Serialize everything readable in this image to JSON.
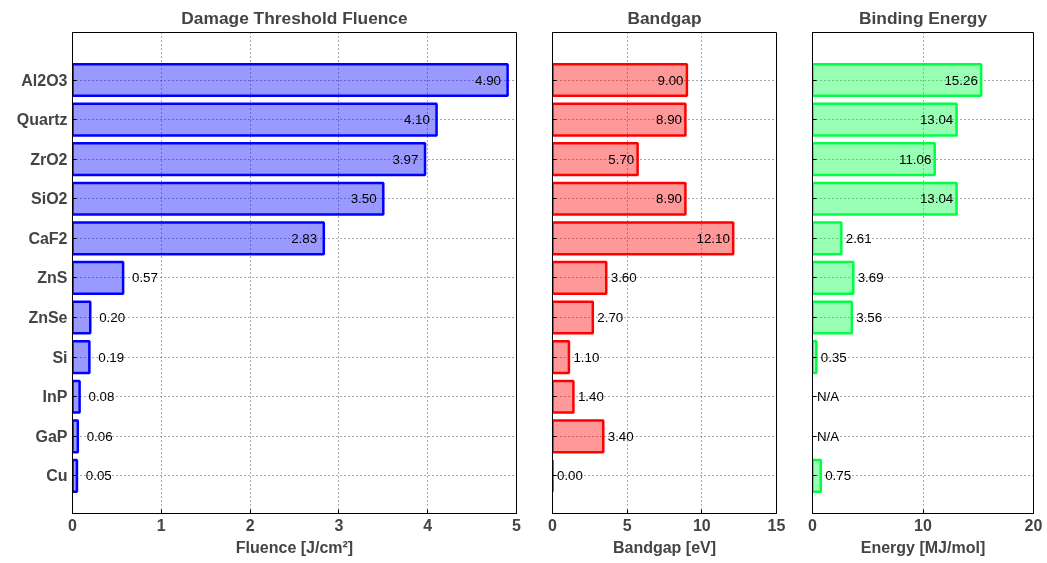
{
  "chart_data": [
    {
      "type": "bar",
      "orientation": "horizontal",
      "title": "Damage Threshold Fluence",
      "xlabel": "Fluence [J/cm²]",
      "categories": [
        "Al2O3",
        "Quartz",
        "ZrO2",
        "SiO2",
        "CaF2",
        "ZnS",
        "ZnSe",
        "Si",
        "InP",
        "GaP",
        "Cu"
      ],
      "series": [
        {
          "color": "#0000ff",
          "values": [
            4.9,
            4.1,
            3.97,
            3.5,
            2.83,
            0.57,
            0.2,
            0.19,
            0.08,
            0.06,
            0.05
          ],
          "value_labels": [
            "4.90",
            "4.10",
            "3.97",
            "3.50",
            "2.83",
            "0.57",
            "0.20",
            "0.19",
            "0.08",
            "0.06",
            "0.05"
          ]
        }
      ],
      "xlim": [
        0,
        5
      ],
      "xticks": [
        0,
        1,
        2,
        3,
        4,
        5
      ],
      "grid": true
    },
    {
      "type": "bar",
      "orientation": "horizontal",
      "title": "Bandgap",
      "xlabel": "Bandgap [eV]",
      "categories": [
        null,
        null,
        null,
        null,
        null,
        null,
        null,
        null,
        null,
        null,
        null
      ],
      "series": [
        {
          "color": "#ff0000",
          "values": [
            9.0,
            8.9,
            5.7,
            8.9,
            12.1,
            3.6,
            2.7,
            1.1,
            1.4,
            3.4,
            0.0
          ],
          "value_labels": [
            "9.00",
            "8.90",
            "5.70",
            "8.90",
            "12.10",
            "3.60",
            "2.70",
            "1.10",
            "1.40",
            "3.40",
            "0.00"
          ]
        }
      ],
      "xlim": [
        0,
        15
      ],
      "xticks": [
        0,
        5,
        10,
        15
      ],
      "grid": true
    },
    {
      "type": "bar",
      "orientation": "horizontal",
      "title": "Binding Energy",
      "xlabel": "Energy [MJ/mol]",
      "categories": [
        null,
        null,
        null,
        null,
        null,
        null,
        null,
        null,
        null,
        null,
        null
      ],
      "series": [
        {
          "color": "#00ff44",
          "values": [
            15.26,
            13.04,
            11.06,
            13.04,
            2.61,
            3.69,
            3.56,
            0.35,
            null,
            null,
            0.75
          ],
          "value_labels": [
            "15.26",
            "13.04",
            "11.06",
            "13.04",
            "2.61",
            "3.69",
            "3.56",
            "0.35",
            "N/A",
            "N/A",
            "0.75"
          ]
        }
      ],
      "xlim": [
        0,
        20
      ],
      "xticks": [
        0,
        10,
        20
      ],
      "grid": true
    }
  ]
}
